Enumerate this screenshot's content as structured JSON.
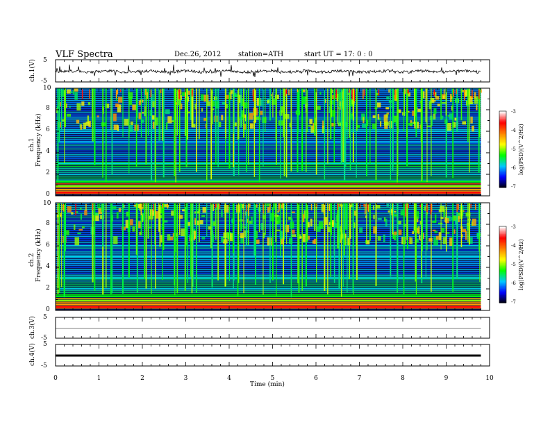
{
  "header": {
    "title": "VLF  Spectra",
    "date": "Dec.26, 2012",
    "station": "station=ATH",
    "start": "start  UT =   17: 0  : 0"
  },
  "x_axis": {
    "label": "Time  (min)",
    "ticks": [
      "0",
      "1",
      "2",
      "3",
      "4",
      "5",
      "6",
      "7",
      "8",
      "9",
      "10"
    ]
  },
  "panels": {
    "ch1_wave": {
      "label": "ch.1(V)",
      "ticks": [
        "5",
        "-5"
      ]
    },
    "ch1_spec": {
      "label1": "ch.1",
      "label2": "Frequency  (kHz)",
      "ticks": [
        "10",
        "8",
        "6",
        "4",
        "2",
        "0"
      ]
    },
    "ch2_spec": {
      "label1": "ch.2",
      "label2": "Frequency  (kHz)",
      "ticks": [
        "10",
        "8",
        "6",
        "4",
        "2",
        "0"
      ]
    },
    "ch3_wave": {
      "label": "ch.3(V)",
      "ticks": [
        "5",
        "-5"
      ]
    },
    "ch4_wave": {
      "label": "ch.4(V)",
      "ticks": [
        "5",
        "-5"
      ]
    }
  },
  "colorbar": {
    "label": "log(PSD)(V^2/Hz)",
    "ticks": [
      "-3",
      "-4",
      "-5",
      "-6",
      "-7"
    ]
  },
  "chart_data": {
    "type": "heatmap",
    "title": "VLF  Spectra",
    "xlabel": "Time  (min)",
    "xlim": [
      0,
      10
    ],
    "data_end_min": 9.8,
    "ylabel": "Frequency  (kHz)",
    "ylim": [
      0,
      10
    ],
    "color_range": [
      -7,
      -3
    ],
    "colormap": [
      "#000000",
      "#0000ff",
      "#00c8ff",
      "#00ff00",
      "#ffff00",
      "#ff8000",
      "#ff0000",
      "#ffffff"
    ],
    "channels": [
      "ch.1",
      "ch.2"
    ],
    "waveform_range_V": [
      -5,
      5
    ]
  }
}
